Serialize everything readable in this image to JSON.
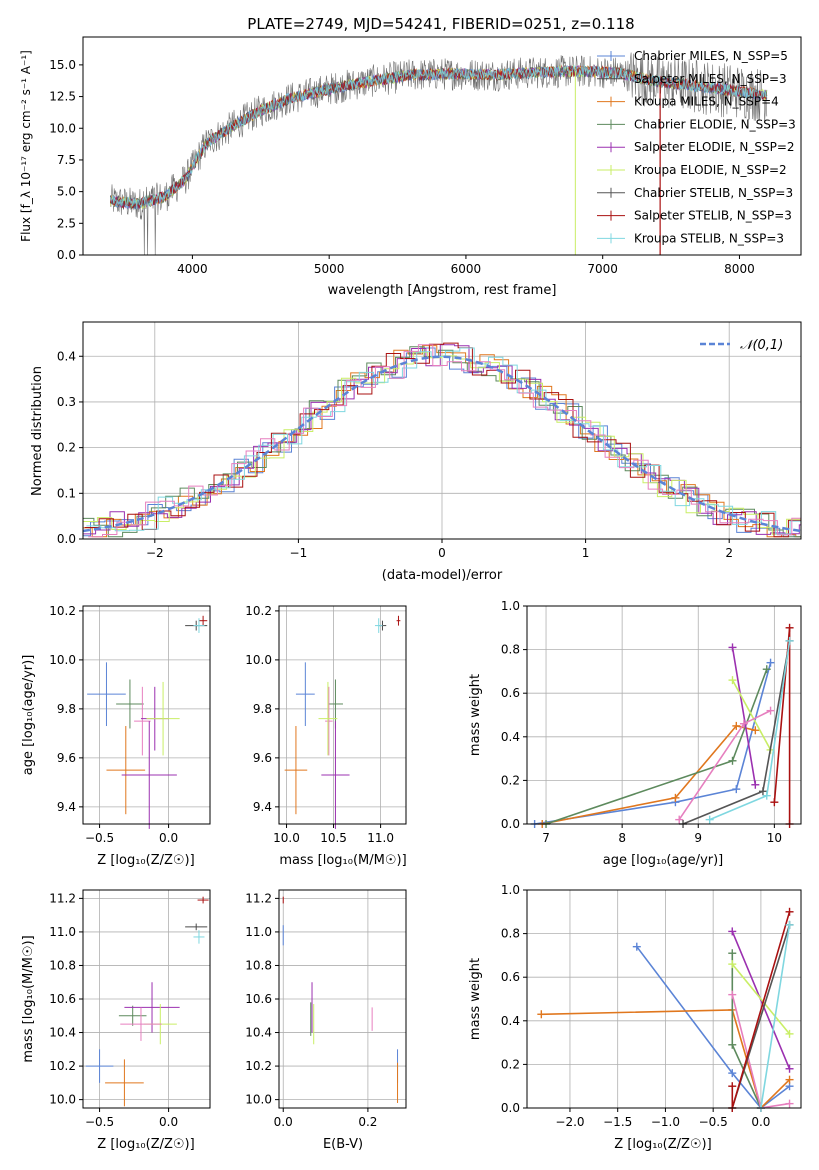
{
  "colors": {
    "chabrier_miles": "#5b84d6",
    "salpeter_miles": "#4a4a4a",
    "kroupa_miles": "#e0771e",
    "chabrier_elodie": "#5d8a5d",
    "salpeter_elodie": "#9b30b0",
    "kroupa_elodie": "#c9ee66",
    "chabrier_stelib": "#555555",
    "salpeter_stelib": "#aa1111",
    "kroupa_stelib": "#7fd7e0",
    "pink": "#e67fbf",
    "normal_curve": "#5b84d6",
    "grid": "#b0b0b0"
  },
  "chart_data": [
    {
      "id": "spectrum",
      "type": "line",
      "title": "PLATE=2749, MJD=54241, FIBERID=0251, z=0.118",
      "xlabel": "wavelength [Angstrom, rest frame]",
      "ylabel": "Flux [f_λ 10⁻¹⁷ erg cm⁻² s⁻¹ A⁻¹]",
      "xlim": [
        3200,
        8450
      ],
      "ylim": [
        0,
        17.2
      ],
      "xticks": [
        "4000",
        "5000",
        "6000",
        "7000",
        "8000"
      ],
      "yticks": [
        "0.0",
        "2.5",
        "5.0",
        "7.5",
        "10.0",
        "12.5",
        "15.0"
      ],
      "grid": false,
      "legend_position": "right",
      "legend": [
        "Chabrier MILES, N_SSP=5",
        "Salpeter MILES, N_SSP=3",
        "Kroupa MILES, N_SSP=4",
        "Chabrier ELODIE, N_SSP=3",
        "Salpeter ELODIE, N_SSP=2",
        "Kroupa ELODIE, N_SSP=2",
        "Chabrier STELIB, N_SSP=3",
        "Salpeter STELIB, N_SSP=3",
        "Kroupa STELIB, N_SSP=3"
      ],
      "continuum": {
        "x": [
          3400,
          3600,
          3800,
          3950,
          4100,
          4300,
          4500,
          4700,
          5000,
          5300,
          5600,
          5900,
          6200,
          6500,
          6800,
          7100,
          7400,
          7700,
          8000,
          8200
        ],
        "y": [
          4.3,
          4.0,
          4.6,
          6.0,
          8.8,
          10.2,
          11.4,
          12.3,
          13.1,
          13.7,
          14.2,
          14.3,
          14.2,
          14.4,
          14.5,
          14.4,
          13.7,
          13.3,
          12.9,
          12.6
        ]
      }
    },
    {
      "id": "residuals",
      "type": "area",
      "xlabel": "(data-model)/error",
      "ylabel": "Normed distribution",
      "xlim": [
        -2.5,
        2.5
      ],
      "ylim": [
        0,
        0.475
      ],
      "xticks": [
        "−2",
        "−1",
        "0",
        "1",
        "2"
      ],
      "yticks": [
        "0.0",
        "0.1",
        "0.2",
        "0.3",
        "0.4"
      ],
      "grid": true,
      "legend_position": "top-right",
      "legend": [
        "𝒩(0,1)"
      ],
      "bin_width": 0.1
    },
    {
      "id": "age_vs_Z",
      "type": "scatter",
      "xlabel": "Z [log₁₀(Z/Z☉)]",
      "ylabel": "age [log₁₀(age/yr)]",
      "xlim": [
        -0.62,
        0.3
      ],
      "ylim": [
        9.33,
        10.22
      ],
      "xticks": [
        "−0.5",
        "0.0"
      ],
      "yticks": [
        "9.4",
        "9.6",
        "9.8",
        "10.0",
        "10.2"
      ],
      "grid": true,
      "points": [
        {
          "c": "chabrier_miles",
          "x": -0.45,
          "y": 9.86,
          "ex": 0.14,
          "ey": 0.13
        },
        {
          "c": "kroupa_miles",
          "x": -0.31,
          "y": 9.55,
          "ex": 0.14,
          "ey": 0.18
        },
        {
          "c": "chabrier_elodie",
          "x": -0.28,
          "y": 9.82,
          "ex": 0.1,
          "ey": 0.1
        },
        {
          "c": "pink",
          "x": -0.19,
          "y": 9.75,
          "ex": 0.06,
          "ey": 0.14
        },
        {
          "c": "salpeter_elodie",
          "x": -0.14,
          "y": 9.53,
          "ex": 0.2,
          "ey": 0.22
        },
        {
          "c": "salpeter_elodie",
          "x": -0.1,
          "y": 9.76,
          "ex": 0.1,
          "ey": 0.13
        },
        {
          "c": "kroupa_elodie",
          "x": -0.04,
          "y": 9.76,
          "ex": 0.12,
          "ey": 0.15
        },
        {
          "c": "salpeter_stelib",
          "x": 0.25,
          "y": 10.16,
          "ex": 0.03,
          "ey": 0.02
        },
        {
          "c": "salpeter_miles",
          "x": 0.2,
          "y": 10.14,
          "ex": 0.08,
          "ey": 0.02
        },
        {
          "c": "kroupa_stelib",
          "x": 0.22,
          "y": 10.14,
          "ex": 0.04,
          "ey": 0.03
        }
      ]
    },
    {
      "id": "age_vs_mass",
      "type": "scatter",
      "xlabel": "mass [log₁₀(M/M☉)]",
      "xlim": [
        9.92,
        11.27
      ],
      "ylim": [
        9.33,
        10.22
      ],
      "xticks": [
        "10.0",
        "10.5",
        "11.0"
      ],
      "yticks": [
        "9.4",
        "9.6",
        "9.8",
        "10.0",
        "10.2"
      ],
      "grid": true,
      "points": [
        {
          "c": "chabrier_miles",
          "x": 10.2,
          "y": 9.86,
          "ex": 0.1,
          "ey": 0.13
        },
        {
          "c": "kroupa_miles",
          "x": 10.1,
          "y": 9.55,
          "ex": 0.12,
          "ey": 0.18
        },
        {
          "c": "chabrier_elodie",
          "x": 10.52,
          "y": 9.82,
          "ex": 0.08,
          "ey": 0.1
        },
        {
          "c": "pink",
          "x": 10.45,
          "y": 9.75,
          "ex": 0.04,
          "ey": 0.14
        },
        {
          "c": "salpeter_elodie",
          "x": 10.52,
          "y": 9.53,
          "ex": 0.15,
          "ey": 0.22
        },
        {
          "c": "kroupa_elodie",
          "x": 10.44,
          "y": 9.76,
          "ex": 0.1,
          "ey": 0.15
        },
        {
          "c": "salpeter_stelib",
          "x": 11.19,
          "y": 10.16,
          "ex": 0.02,
          "ey": 0.02
        },
        {
          "c": "salpeter_miles",
          "x": 11.02,
          "y": 10.14,
          "ex": 0.04,
          "ey": 0.02
        },
        {
          "c": "kroupa_stelib",
          "x": 10.98,
          "y": 10.14,
          "ex": 0.04,
          "ey": 0.03
        }
      ]
    },
    {
      "id": "massweight_vs_age",
      "type": "line",
      "xlabel": "age  [log₁₀(age/yr)]",
      "ylabel": "mass weight",
      "xlim": [
        6.75,
        10.35
      ],
      "ylim": [
        0,
        1
      ],
      "xticks": [
        "7",
        "8",
        "9",
        "10"
      ],
      "yticks": [
        "0.0",
        "0.2",
        "0.4",
        "0.6",
        "0.8",
        "1.0"
      ],
      "grid": true,
      "series": [
        {
          "c": "chabrier_miles",
          "x": [
            6.85,
            8.7,
            9.5,
            9.95
          ],
          "y": [
            0.0,
            0.1,
            0.16,
            0.74
          ]
        },
        {
          "c": "kroupa_miles",
          "x": [
            6.95,
            8.7,
            9.5,
            9.75
          ],
          "y": [
            0.0,
            0.12,
            0.45,
            0.43
          ]
        },
        {
          "c": "chabrier_elodie",
          "x": [
            7.0,
            9.45,
            9.9
          ],
          "y": [
            0.0,
            0.29,
            0.71
          ]
        },
        {
          "c": "salpeter_elodie",
          "x": [
            9.45,
            9.75
          ],
          "y": [
            0.81,
            0.18
          ]
        },
        {
          "c": "kroupa_elodie",
          "x": [
            9.45,
            9.95
          ],
          "y": [
            0.66,
            0.34
          ]
        },
        {
          "c": "pink",
          "x": [
            8.75,
            9.6,
            9.95
          ],
          "y": [
            0.02,
            0.46,
            0.52
          ]
        },
        {
          "c": "chabrier_stelib",
          "x": [
            8.8,
            9.85,
            10.2
          ],
          "y": [
            0.0,
            0.15,
            0.84
          ]
        },
        {
          "c": "salpeter_stelib",
          "x": [
            10.0,
            10.2,
            10.2
          ],
          "y": [
            0.1,
            0.9,
            0.0
          ]
        },
        {
          "c": "kroupa_stelib",
          "x": [
            9.15,
            9.9,
            10.2
          ],
          "y": [
            0.02,
            0.13,
            0.84
          ]
        }
      ]
    },
    {
      "id": "mass_vs_Z",
      "type": "scatter",
      "xlabel": "Z [log₁₀(Z/Z☉)]",
      "ylabel": "mass [log₁₀(M/M☉)]",
      "xlim": [
        -0.62,
        0.3
      ],
      "ylim": [
        9.95,
        11.25
      ],
      "xticks": [
        "−0.5",
        "0.0"
      ],
      "yticks": [
        "10.0",
        "10.2",
        "10.4",
        "10.6",
        "10.8",
        "11.0",
        "11.2"
      ],
      "grid": true,
      "points": [
        {
          "c": "chabrier_miles",
          "x": -0.5,
          "y": 10.2,
          "ex": 0.1,
          "ey": 0.1
        },
        {
          "c": "kroupa_miles",
          "x": -0.32,
          "y": 10.1,
          "ex": 0.14,
          "ey": 0.14
        },
        {
          "c": "chabrier_elodie",
          "x": -0.26,
          "y": 10.5,
          "ex": 0.1,
          "ey": 0.06
        },
        {
          "c": "salpeter_elodie",
          "x": -0.12,
          "y": 10.55,
          "ex": 0.2,
          "ey": 0.15
        },
        {
          "c": "kroupa_elodie",
          "x": -0.06,
          "y": 10.45,
          "ex": 0.12,
          "ey": 0.12
        },
        {
          "c": "pink",
          "x": -0.2,
          "y": 10.45,
          "ex": 0.15,
          "ey": 0.1
        },
        {
          "c": "salpeter_stelib",
          "x": 0.25,
          "y": 11.19,
          "ex": 0.04,
          "ey": 0.02
        },
        {
          "c": "salpeter_miles",
          "x": 0.2,
          "y": 11.03,
          "ex": 0.08,
          "ey": 0.02
        },
        {
          "c": "kroupa_stelib",
          "x": 0.22,
          "y": 10.97,
          "ex": 0.04,
          "ey": 0.04
        }
      ]
    },
    {
      "id": "mass_vs_ebv",
      "type": "scatter",
      "xlabel": "E(B-V)",
      "xlim": [
        -0.01,
        0.29
      ],
      "ylim": [
        9.95,
        11.25
      ],
      "xticks": [
        "0.0",
        "0.2"
      ],
      "yticks": [
        "10.0",
        "10.2",
        "10.4",
        "10.6",
        "10.8",
        "11.0",
        "11.2"
      ],
      "grid": true,
      "points": [
        {
          "c": "salpeter_stelib",
          "x": 0.0,
          "y": 11.19,
          "ex": 0.0,
          "ey": 0.02
        },
        {
          "c": "chabrier_miles",
          "x": 0.0,
          "y": 10.98,
          "ex": 0.0,
          "ey": 0.06
        },
        {
          "c": "salpeter_elodie",
          "x": 0.068,
          "y": 10.55,
          "ex": 0.0,
          "ey": 0.15
        },
        {
          "c": "chabrier_elodie",
          "x": 0.065,
          "y": 10.48,
          "ex": 0.0,
          "ey": 0.1
        },
        {
          "c": "kroupa_elodie",
          "x": 0.072,
          "y": 10.45,
          "ex": 0.0,
          "ey": 0.12
        },
        {
          "c": "pink",
          "x": 0.21,
          "y": 10.48,
          "ex": 0.0,
          "ey": 0.07
        },
        {
          "c": "chabrier_miles",
          "x": 0.27,
          "y": 10.2,
          "ex": 0.0,
          "ey": 0.1
        },
        {
          "c": "kroupa_miles",
          "x": 0.27,
          "y": 10.1,
          "ex": 0.0,
          "ey": 0.12
        }
      ]
    },
    {
      "id": "massweight_vs_Z",
      "type": "line",
      "xlabel": "Z [log₁₀(Z/Z☉)]",
      "ylabel": "mass weight",
      "xlim": [
        -2.45,
        0.42
      ],
      "ylim": [
        0,
        1
      ],
      "xticks": [
        "−2.0",
        "−1.5",
        "−1.0",
        "−0.5",
        "0.0"
      ],
      "yticks": [
        "0.0",
        "0.2",
        "0.4",
        "0.6",
        "0.8",
        "1.0"
      ],
      "grid": true,
      "series": [
        {
          "c": "chabrier_miles",
          "x": [
            -1.3,
            -0.3,
            0.0,
            0.3
          ],
          "y": [
            0.74,
            0.16,
            0.0,
            0.1
          ]
        },
        {
          "c": "kroupa_miles",
          "x": [
            -2.3,
            -0.3,
            0.0,
            0.3
          ],
          "y": [
            0.43,
            0.45,
            0.0,
            0.13
          ]
        },
        {
          "c": "chabrier_elodie",
          "x": [
            -0.3,
            -0.3,
            0.0
          ],
          "y": [
            0.71,
            0.29,
            0.0
          ]
        },
        {
          "c": "salpeter_elodie",
          "x": [
            -0.3,
            0.3
          ],
          "y": [
            0.81,
            0.18
          ]
        },
        {
          "c": "kroupa_elodie",
          "x": [
            -0.3,
            0.3
          ],
          "y": [
            0.66,
            0.34
          ]
        },
        {
          "c": "pink",
          "x": [
            -0.3,
            0.0,
            0.3
          ],
          "y": [
            0.52,
            0.0,
            0.02
          ]
        },
        {
          "c": "chabrier_stelib",
          "x": [
            -0.3,
            0.3
          ],
          "y": [
            0.0,
            0.84
          ]
        },
        {
          "c": "salpeter_stelib",
          "x": [
            -0.3,
            -0.3,
            0.3
          ],
          "y": [
            0.1,
            0.0,
            0.9
          ]
        },
        {
          "c": "kroupa_stelib",
          "x": [
            0.0,
            0.3
          ],
          "y": [
            0.0,
            0.84
          ]
        }
      ]
    }
  ]
}
